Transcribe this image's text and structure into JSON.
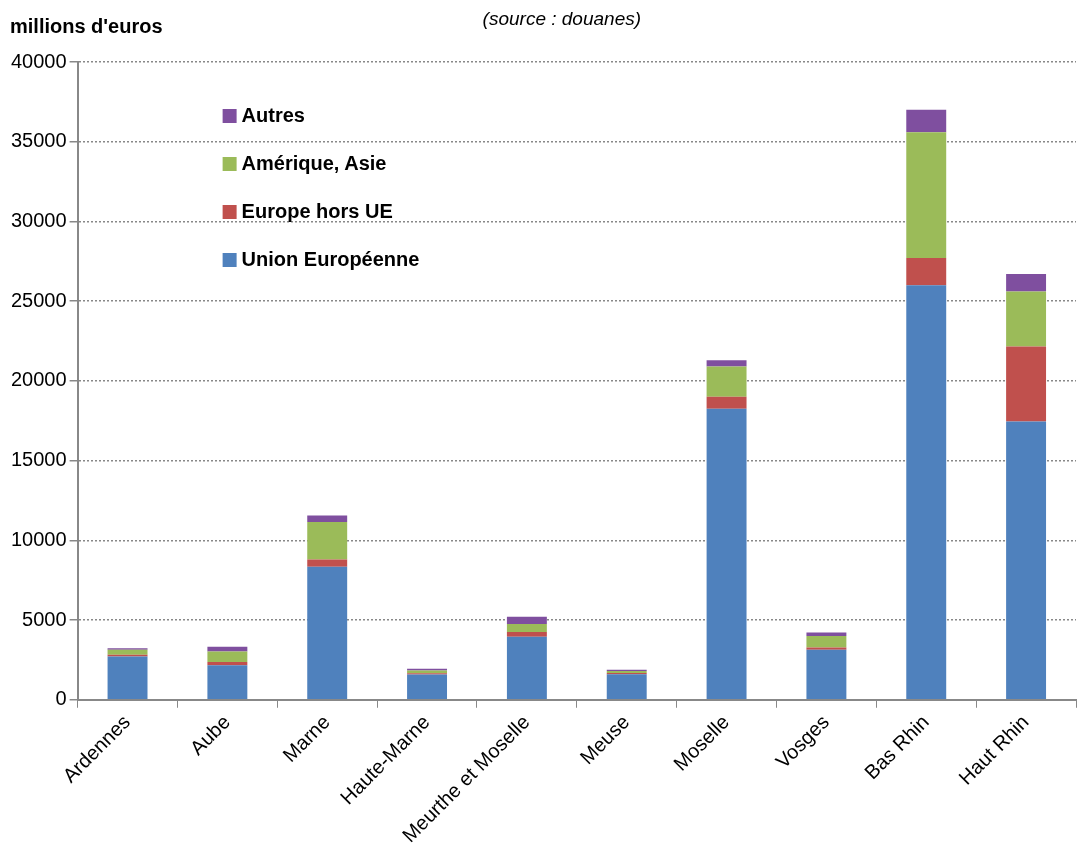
{
  "chart_data": {
    "type": "bar",
    "ylabel": "millions d'euros",
    "annotations": [
      "(source : douanes)"
    ],
    "categories": [
      "Ardennes",
      "Aube",
      "Marne",
      "Haute-Marne",
      "Meurthe et Moselle",
      "Meuse",
      "Moselle",
      "Vosges",
      "Bas Rhin",
      "Haut Rhin"
    ],
    "stacked": true,
    "series": [
      {
        "name": "Union Européenne",
        "color": "#4f81bd",
        "values": [
          2720,
          2170,
          8350,
          1580,
          3950,
          1600,
          18250,
          3130,
          26000,
          17450
        ]
      },
      {
        "name": "Europe hors UE",
        "color": "#c0504d",
        "values": [
          110,
          200,
          450,
          80,
          300,
          80,
          750,
          150,
          1700,
          4700
        ]
      },
      {
        "name": "Amérique, Asie",
        "color": "#9bbb59",
        "values": [
          300,
          650,
          2350,
          170,
          500,
          130,
          1900,
          720,
          7900,
          3450
        ]
      },
      {
        "name": "Autres",
        "color": "#7f4f9f",
        "values": [
          100,
          300,
          400,
          110,
          450,
          70,
          400,
          220,
          1400,
          1100
        ]
      }
    ],
    "ylim": [
      0,
      40000
    ],
    "yticks": [
      0,
      5000,
      10000,
      15000,
      20000,
      25000,
      30000,
      35000,
      40000
    ],
    "grid": "y",
    "legend": "top left"
  }
}
